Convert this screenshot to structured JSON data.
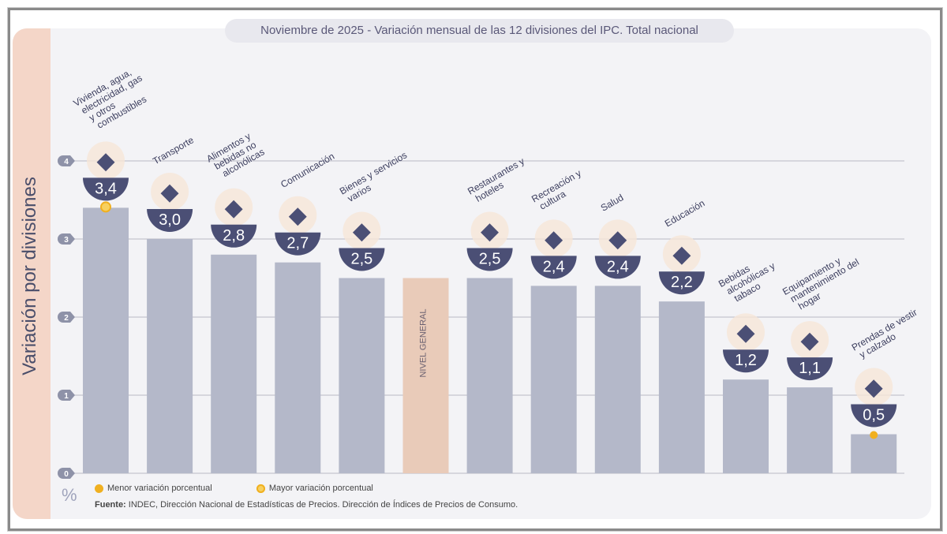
{
  "chart_data": {
    "type": "bar",
    "title": "Noviembre de 2025 - Variación mensual de las 12 divisiones del IPC. Total nacional",
    "ylabel": "Variación por divisiones",
    "yunit": "%",
    "ylim": [
      0,
      4
    ],
    "yticks": [
      "0",
      "1",
      "2",
      "3",
      "4"
    ],
    "grid": true,
    "categories": [
      "Vivienda, agua, electricidad, gas y otros combustibles",
      "Transporte",
      "Alimentos y bebidas no alcohólicas",
      "Comunicación",
      "Bienes y servicios varios",
      "NIVEL GENERAL",
      "Restaurantes y hoteles",
      "Recreación y cultura",
      "Salud",
      "Educación",
      "Bebidas alcohólicas y tabaco",
      "Equipamiento y mantenimiento del hogar",
      "Prendas de vestir y calzado"
    ],
    "values": [
      3.4,
      3.0,
      2.8,
      2.7,
      2.5,
      2.5,
      2.5,
      2.4,
      2.4,
      2.2,
      1.2,
      1.1,
      0.5
    ],
    "value_labels": [
      "3,4",
      "3,0",
      "2,8",
      "2,7",
      "2,5",
      "2,5",
      "2,5",
      "2,4",
      "2,4",
      "2,2",
      "1,2",
      "1,1",
      "0,5"
    ],
    "icons": [
      "key-bulb-icon",
      "sube-card-icon",
      "food-icon",
      "phone-icon",
      "comb-scissors-icon",
      "basket-icon",
      "plate-cutlery-icon",
      "umbrella-icon",
      "first-aid-icon",
      "notebook-icon",
      "wine-icon",
      "air-conditioner-icon",
      "tshirt-icon"
    ],
    "highlight": {
      "max": "Vivienda, agua, electricidad, gas y otros combustibles",
      "min": "Prendas de vestir y calzado",
      "general": "NIVEL GENERAL"
    },
    "legend": [
      "Menor variación porcentual",
      "Mayor variación porcentual"
    ],
    "legend_placement": "bottom-left",
    "colors": {
      "bar": "#b4b8c9",
      "general": "#e9cbb9",
      "badge": "#4b4f75",
      "marker": "#f0b020"
    }
  },
  "source_label": "Fuente:",
  "source": " INDEC, Dirección Nacional de Estadísticas de Precios. Dirección de Índices de Precios de Consumo."
}
